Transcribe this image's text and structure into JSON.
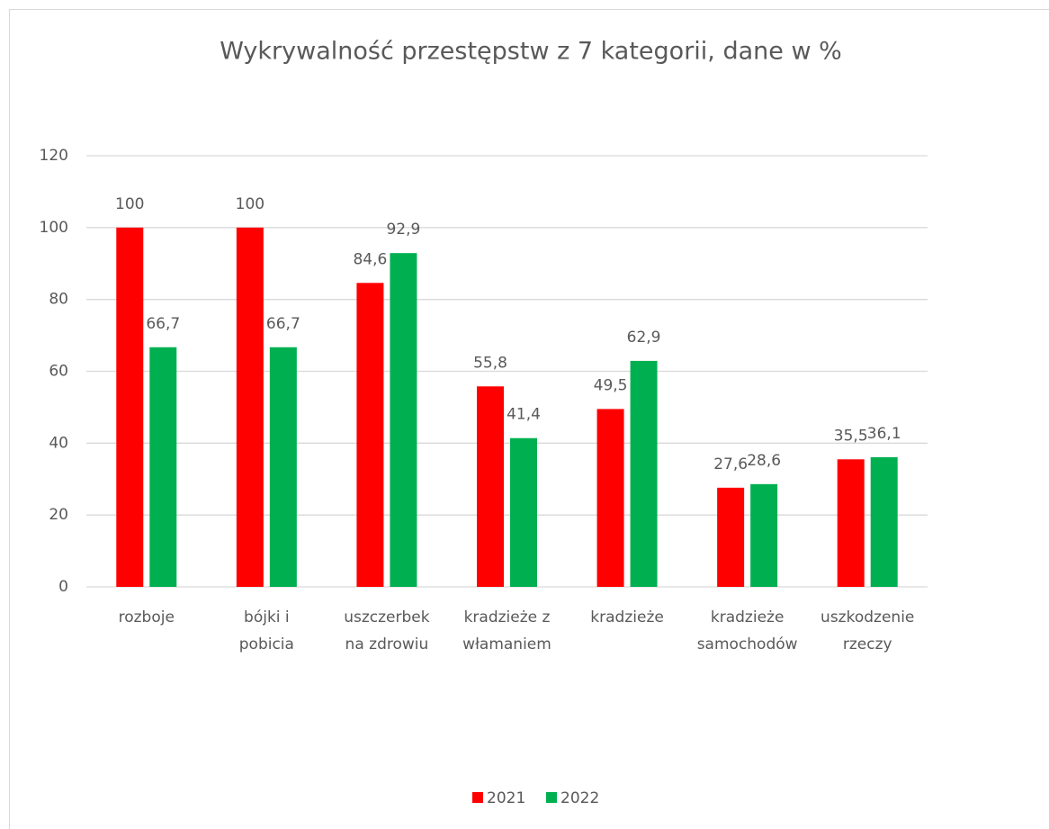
{
  "chart_data": {
    "type": "bar",
    "title": "Wykrywalność przestępstw z 7 kategorii, dane w %",
    "categories": [
      [
        "rozboje"
      ],
      [
        "bójki i",
        "pobicia"
      ],
      [
        "uszczerbek",
        "na zdrowiu"
      ],
      [
        "kradzieże z",
        "włamaniem"
      ],
      [
        "kradzieże"
      ],
      [
        "kradzieże",
        "samochodów"
      ],
      [
        "uszkodzenie",
        "rzeczy"
      ]
    ],
    "series": [
      {
        "name": "2021",
        "color": "#ff0000",
        "values": [
          100,
          100,
          84.6,
          55.8,
          49.5,
          27.6,
          35.5
        ],
        "value_labels": [
          "100",
          "100",
          "84,6",
          "55,8",
          "49,5",
          "27,6",
          "35,5"
        ]
      },
      {
        "name": "2022",
        "color": "#00b050",
        "values": [
          66.7,
          66.7,
          92.9,
          41.4,
          62.9,
          28.6,
          36.1
        ],
        "value_labels": [
          "66,7",
          "66,7",
          "92,9",
          "41,4",
          "62,9",
          "28,6",
          "36,1"
        ]
      }
    ],
    "ylim": [
      0,
      120
    ],
    "yticks": [
      0,
      20,
      40,
      60,
      80,
      100,
      120
    ],
    "grid": true,
    "legend": "bottom"
  }
}
